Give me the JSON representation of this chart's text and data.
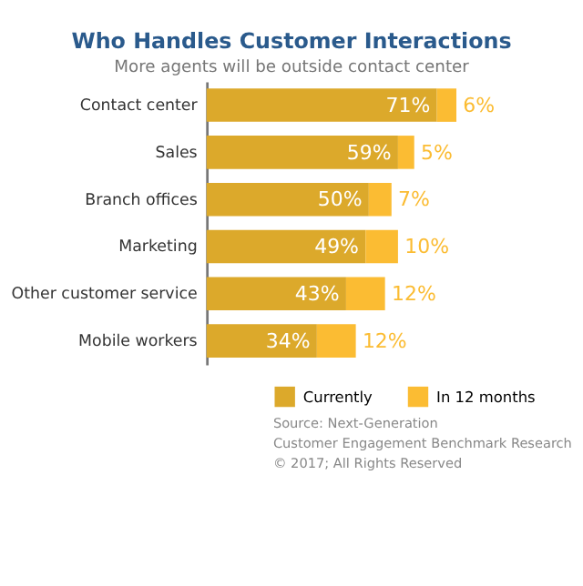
{
  "chart_data": {
    "type": "bar",
    "orientation": "horizontal",
    "stacked": true,
    "title": "Who Handles Customer Interactions",
    "subtitle": "More agents will be outside contact center",
    "categories": [
      "Contact center",
      "Sales",
      "Branch offices",
      "Marketing",
      "Other customer service",
      "Mobile workers"
    ],
    "series": [
      {
        "name": "Currently",
        "color": "#dca92b",
        "values": [
          71,
          59,
          50,
          49,
          43,
          34
        ],
        "value_labels": [
          "71%",
          "59%",
          "50%",
          "49%",
          "43%",
          "34%"
        ]
      },
      {
        "name": "In 12 months",
        "color": "#fbbc33",
        "values": [
          6,
          5,
          7,
          10,
          12,
          12
        ],
        "value_labels": [
          "6%",
          "5%",
          "7%",
          "10%",
          "12%",
          "12%"
        ]
      }
    ],
    "legend": "bottom",
    "annotations": [
      "Source: Next-Generation",
      "Customer Engagement Benchmark Research",
      "© 2017; All Rights Reserved"
    ]
  }
}
